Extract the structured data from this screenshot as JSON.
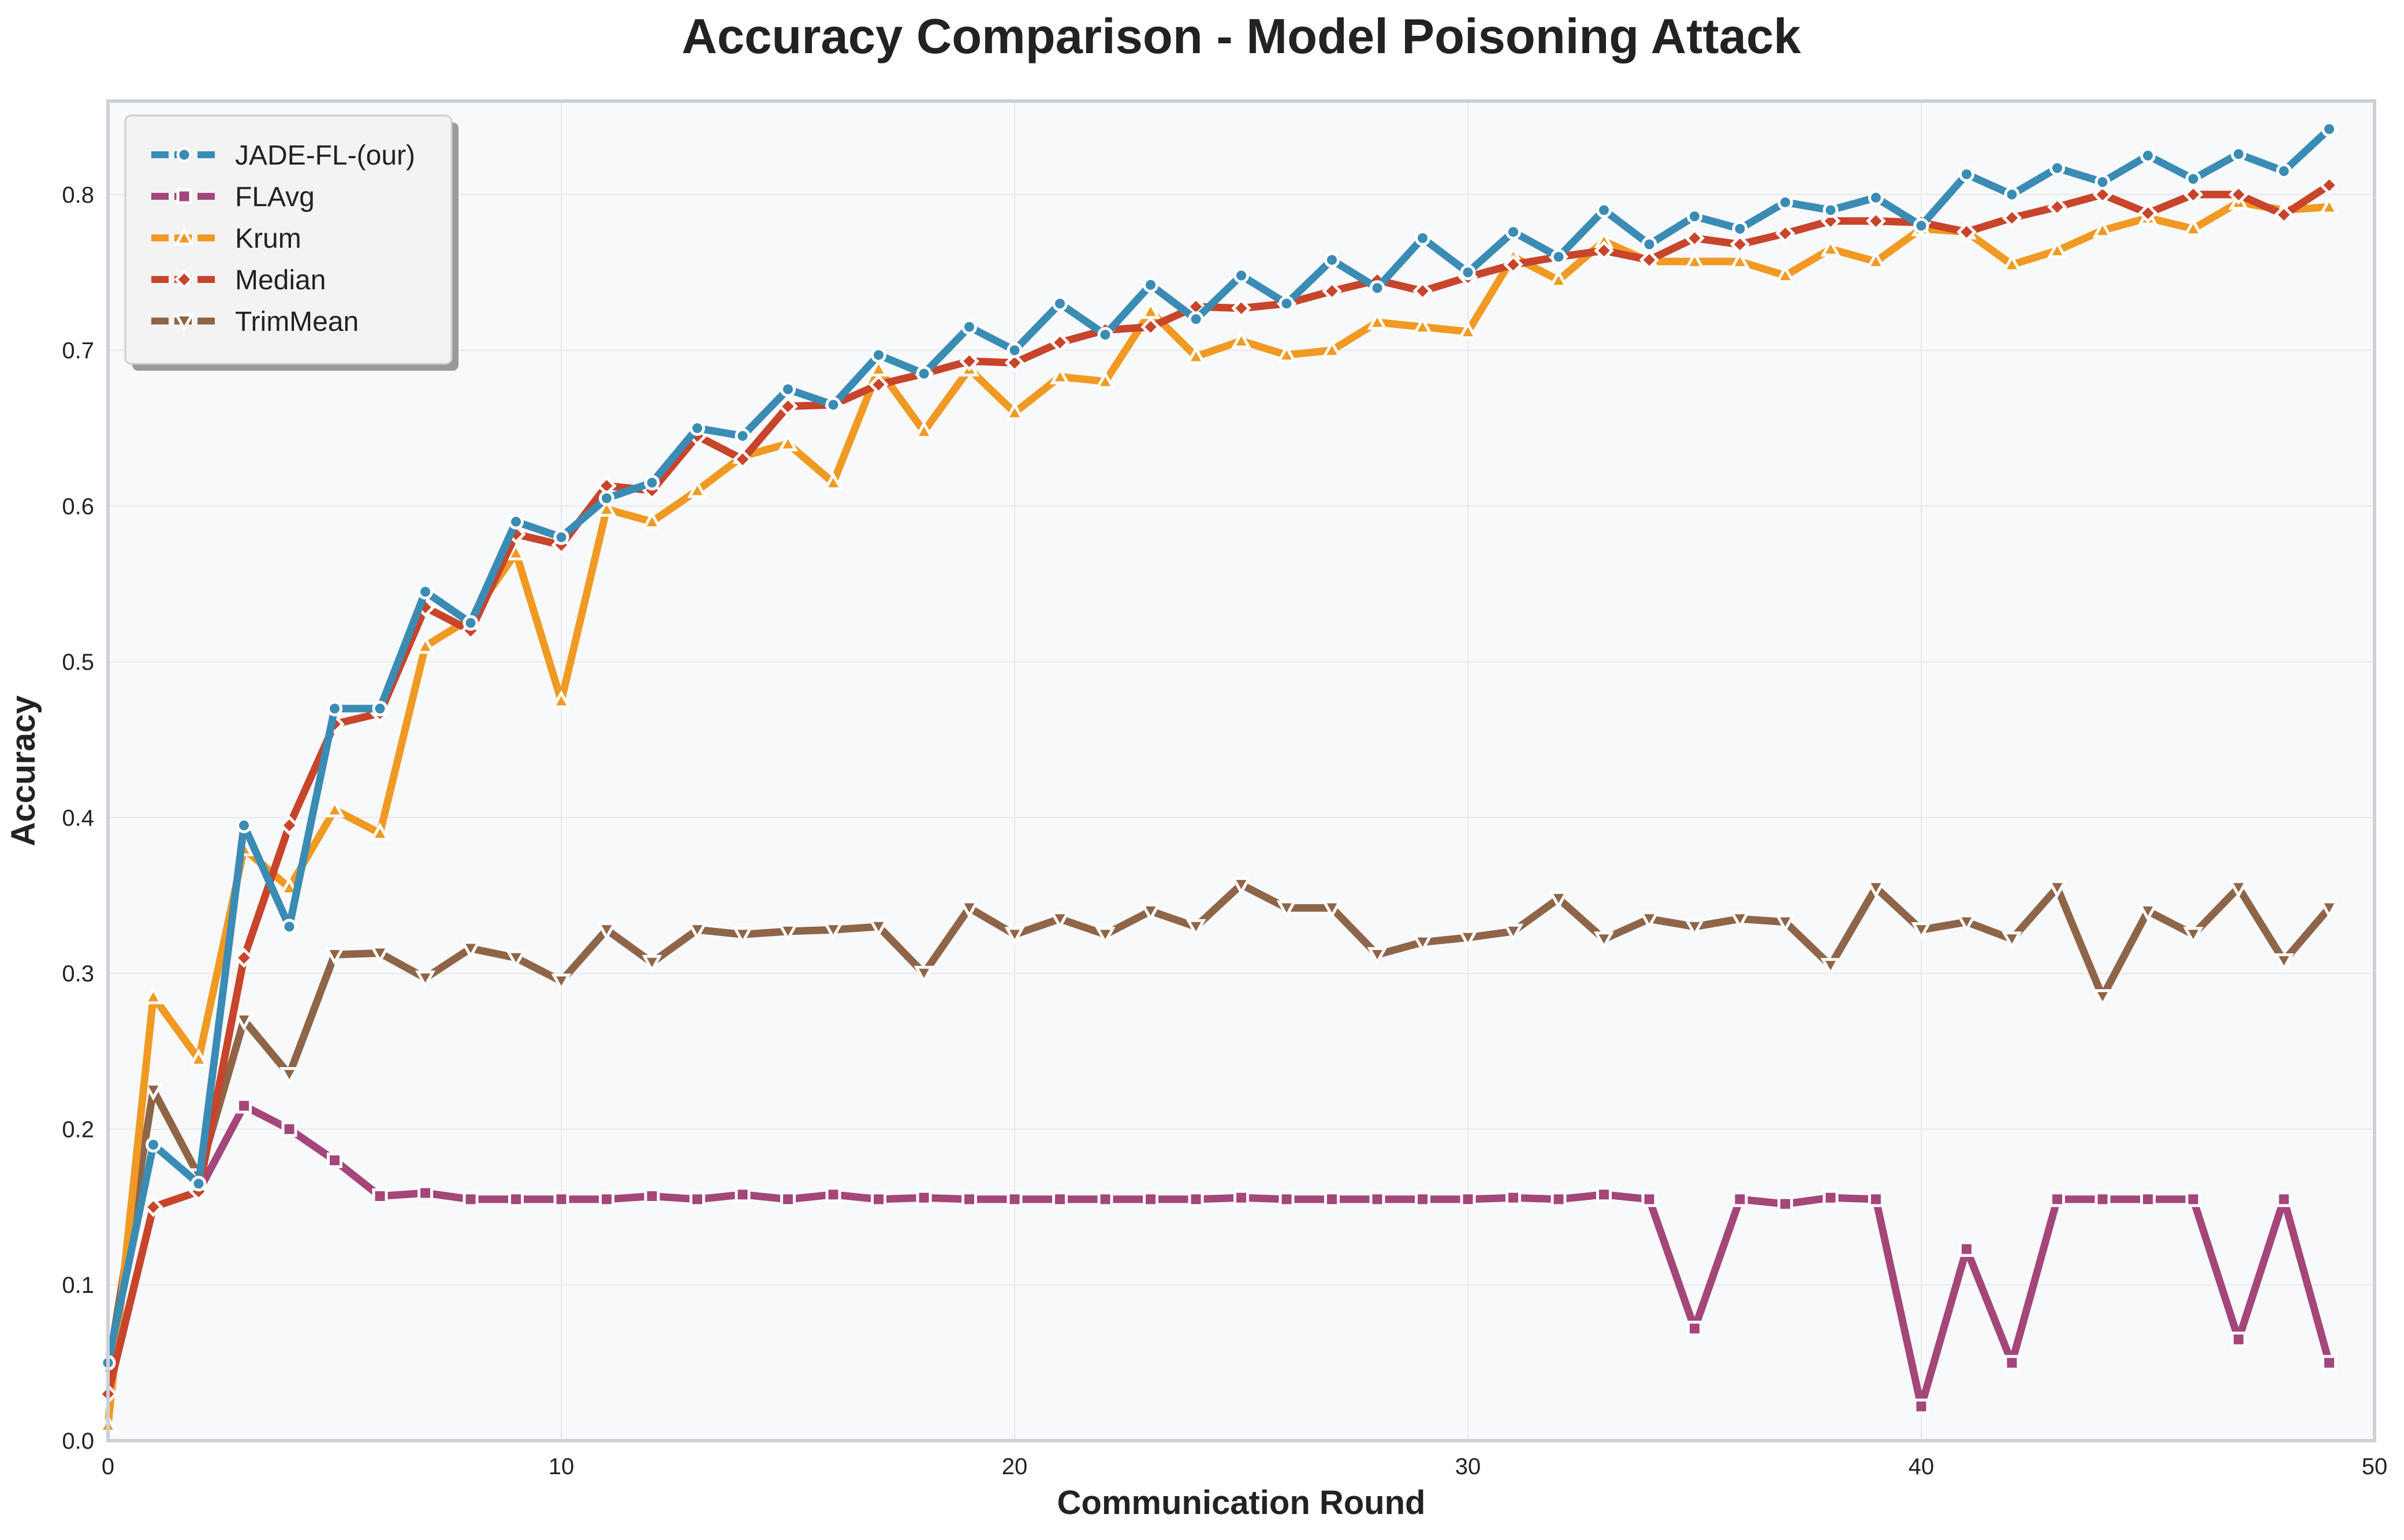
{
  "chart_data": {
    "type": "line",
    "title": "Accuracy Comparison - Model Poisoning Attack",
    "xlabel": "Communication Round",
    "ylabel": "Accuracy",
    "xlim": [
      0,
      50
    ],
    "ylim": [
      0,
      0.86
    ],
    "xticks": [
      0,
      10,
      20,
      30,
      40,
      50
    ],
    "yticks": [
      0.0,
      0.1,
      0.2,
      0.3,
      0.4,
      0.5,
      0.6,
      0.7,
      0.8
    ],
    "xtick_labels": [
      "0",
      "10",
      "20",
      "30",
      "40",
      "50"
    ],
    "ytick_labels": [
      "0.0",
      "0.1",
      "0.2",
      "0.3",
      "0.4",
      "0.5",
      "0.6",
      "0.7",
      "0.8"
    ],
    "grid": true,
    "legend_position": "top-left",
    "x": [
      0,
      1,
      2,
      3,
      4,
      5,
      6,
      7,
      8,
      9,
      10,
      11,
      12,
      13,
      14,
      15,
      16,
      17,
      18,
      19,
      20,
      21,
      22,
      23,
      24,
      25,
      26,
      27,
      28,
      29,
      30,
      31,
      32,
      33,
      34,
      35,
      36,
      37,
      38,
      39,
      40,
      41,
      42,
      43,
      44,
      45,
      46,
      47,
      48,
      49
    ],
    "series": [
      {
        "name": "JADE-FL-(our)",
        "color": "#3a8cb4",
        "marker": "circle",
        "values": [
          0.05,
          0.19,
          0.165,
          0.395,
          0.33,
          0.47,
          0.47,
          0.545,
          0.525,
          0.59,
          0.58,
          0.605,
          0.615,
          0.65,
          0.645,
          0.675,
          0.665,
          0.697,
          0.685,
          0.715,
          0.7,
          0.73,
          0.71,
          0.742,
          0.72,
          0.748,
          0.73,
          0.758,
          0.74,
          0.772,
          0.75,
          0.776,
          0.76,
          0.79,
          0.768,
          0.786,
          0.778,
          0.795,
          0.79,
          0.798,
          0.78,
          0.813,
          0.8,
          0.817,
          0.808,
          0.825,
          0.81,
          0.826,
          0.815,
          0.842
        ]
      },
      {
        "name": "FLAvg",
        "color": "#a4467a",
        "marker": "square",
        "values": [
          0.03,
          0.15,
          0.16,
          0.215,
          0.2,
          0.18,
          0.157,
          0.159,
          0.155,
          0.155,
          0.155,
          0.155,
          0.157,
          0.155,
          0.158,
          0.155,
          0.158,
          0.155,
          0.156,
          0.155,
          0.155,
          0.155,
          0.155,
          0.155,
          0.155,
          0.156,
          0.155,
          0.155,
          0.155,
          0.155,
          0.155,
          0.156,
          0.155,
          0.158,
          0.155,
          0.072,
          0.155,
          0.152,
          0.156,
          0.155,
          0.022,
          0.123,
          0.05,
          0.155,
          0.155,
          0.155,
          0.155,
          0.065,
          0.155,
          0.05
        ]
      },
      {
        "name": "Krum",
        "color": "#f09a23",
        "marker": "triangle-up",
        "values": [
          0.01,
          0.285,
          0.245,
          0.38,
          0.355,
          0.405,
          0.39,
          0.51,
          0.528,
          0.57,
          0.475,
          0.598,
          0.59,
          0.61,
          0.632,
          0.64,
          0.615,
          0.688,
          0.648,
          0.688,
          0.66,
          0.683,
          0.68,
          0.725,
          0.696,
          0.706,
          0.697,
          0.7,
          0.718,
          0.715,
          0.712,
          0.76,
          0.745,
          0.77,
          0.757,
          0.757,
          0.757,
          0.748,
          0.765,
          0.757,
          0.778,
          0.776,
          0.755,
          0.764,
          0.777,
          0.785,
          0.778,
          0.795,
          0.79,
          0.792
        ]
      },
      {
        "name": "Median",
        "color": "#c8442b",
        "marker": "diamond",
        "values": [
          0.03,
          0.15,
          0.16,
          0.31,
          0.395,
          0.46,
          0.467,
          0.535,
          0.52,
          0.582,
          0.575,
          0.613,
          0.61,
          0.645,
          0.63,
          0.664,
          0.665,
          0.678,
          0.685,
          0.693,
          0.692,
          0.705,
          0.713,
          0.715,
          0.728,
          0.727,
          0.73,
          0.738,
          0.745,
          0.738,
          0.747,
          0.755,
          0.76,
          0.764,
          0.758,
          0.772,
          0.768,
          0.775,
          0.783,
          0.783,
          0.782,
          0.776,
          0.785,
          0.792,
          0.8,
          0.788,
          0.8,
          0.8,
          0.787,
          0.806
        ]
      },
      {
        "name": "TrimMean",
        "color": "#8f6548",
        "marker": "triangle-down",
        "values": [
          0.045,
          0.225,
          0.17,
          0.27,
          0.235,
          0.312,
          0.313,
          0.297,
          0.316,
          0.31,
          0.295,
          0.328,
          0.307,
          0.328,
          0.325,
          0.327,
          0.328,
          0.33,
          0.3,
          0.342,
          0.325,
          0.335,
          0.325,
          0.34,
          0.33,
          0.357,
          0.342,
          0.342,
          0.312,
          0.32,
          0.323,
          0.327,
          0.348,
          0.322,
          0.335,
          0.33,
          0.335,
          0.333,
          0.305,
          0.355,
          0.328,
          0.333,
          0.322,
          0.355,
          0.285,
          0.34,
          0.325,
          0.355,
          0.308,
          0.342
        ]
      }
    ]
  }
}
